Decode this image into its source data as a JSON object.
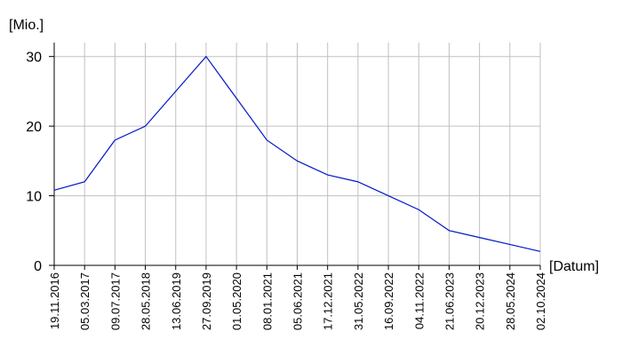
{
  "chart_data": {
    "type": "line",
    "y_label": "[Mio.]",
    "x_label": "[Datum]",
    "categories": [
      "19.11.2016",
      "05.03.2017",
      "09.07.2017",
      "28.05.2018",
      "13.06.2019",
      "27.09.2019",
      "01.05.2020",
      "08.01.2021",
      "05.06.2021",
      "17.12.2021",
      "31.05.2022",
      "16.09.2022",
      "04.11.2022",
      "21.06.2023",
      "20.12.2023",
      "28.05.2024",
      "02.10.2024"
    ],
    "series": [
      {
        "color": "#0018c8",
        "values": [
          10.8,
          12,
          18,
          20,
          25,
          30,
          24,
          18,
          15,
          13,
          12,
          10,
          8,
          5,
          4,
          3,
          2
        ]
      }
    ],
    "ylim": [
      0,
      32
    ],
    "yticks": [
      0,
      10,
      20,
      30
    ],
    "grid": true
  }
}
